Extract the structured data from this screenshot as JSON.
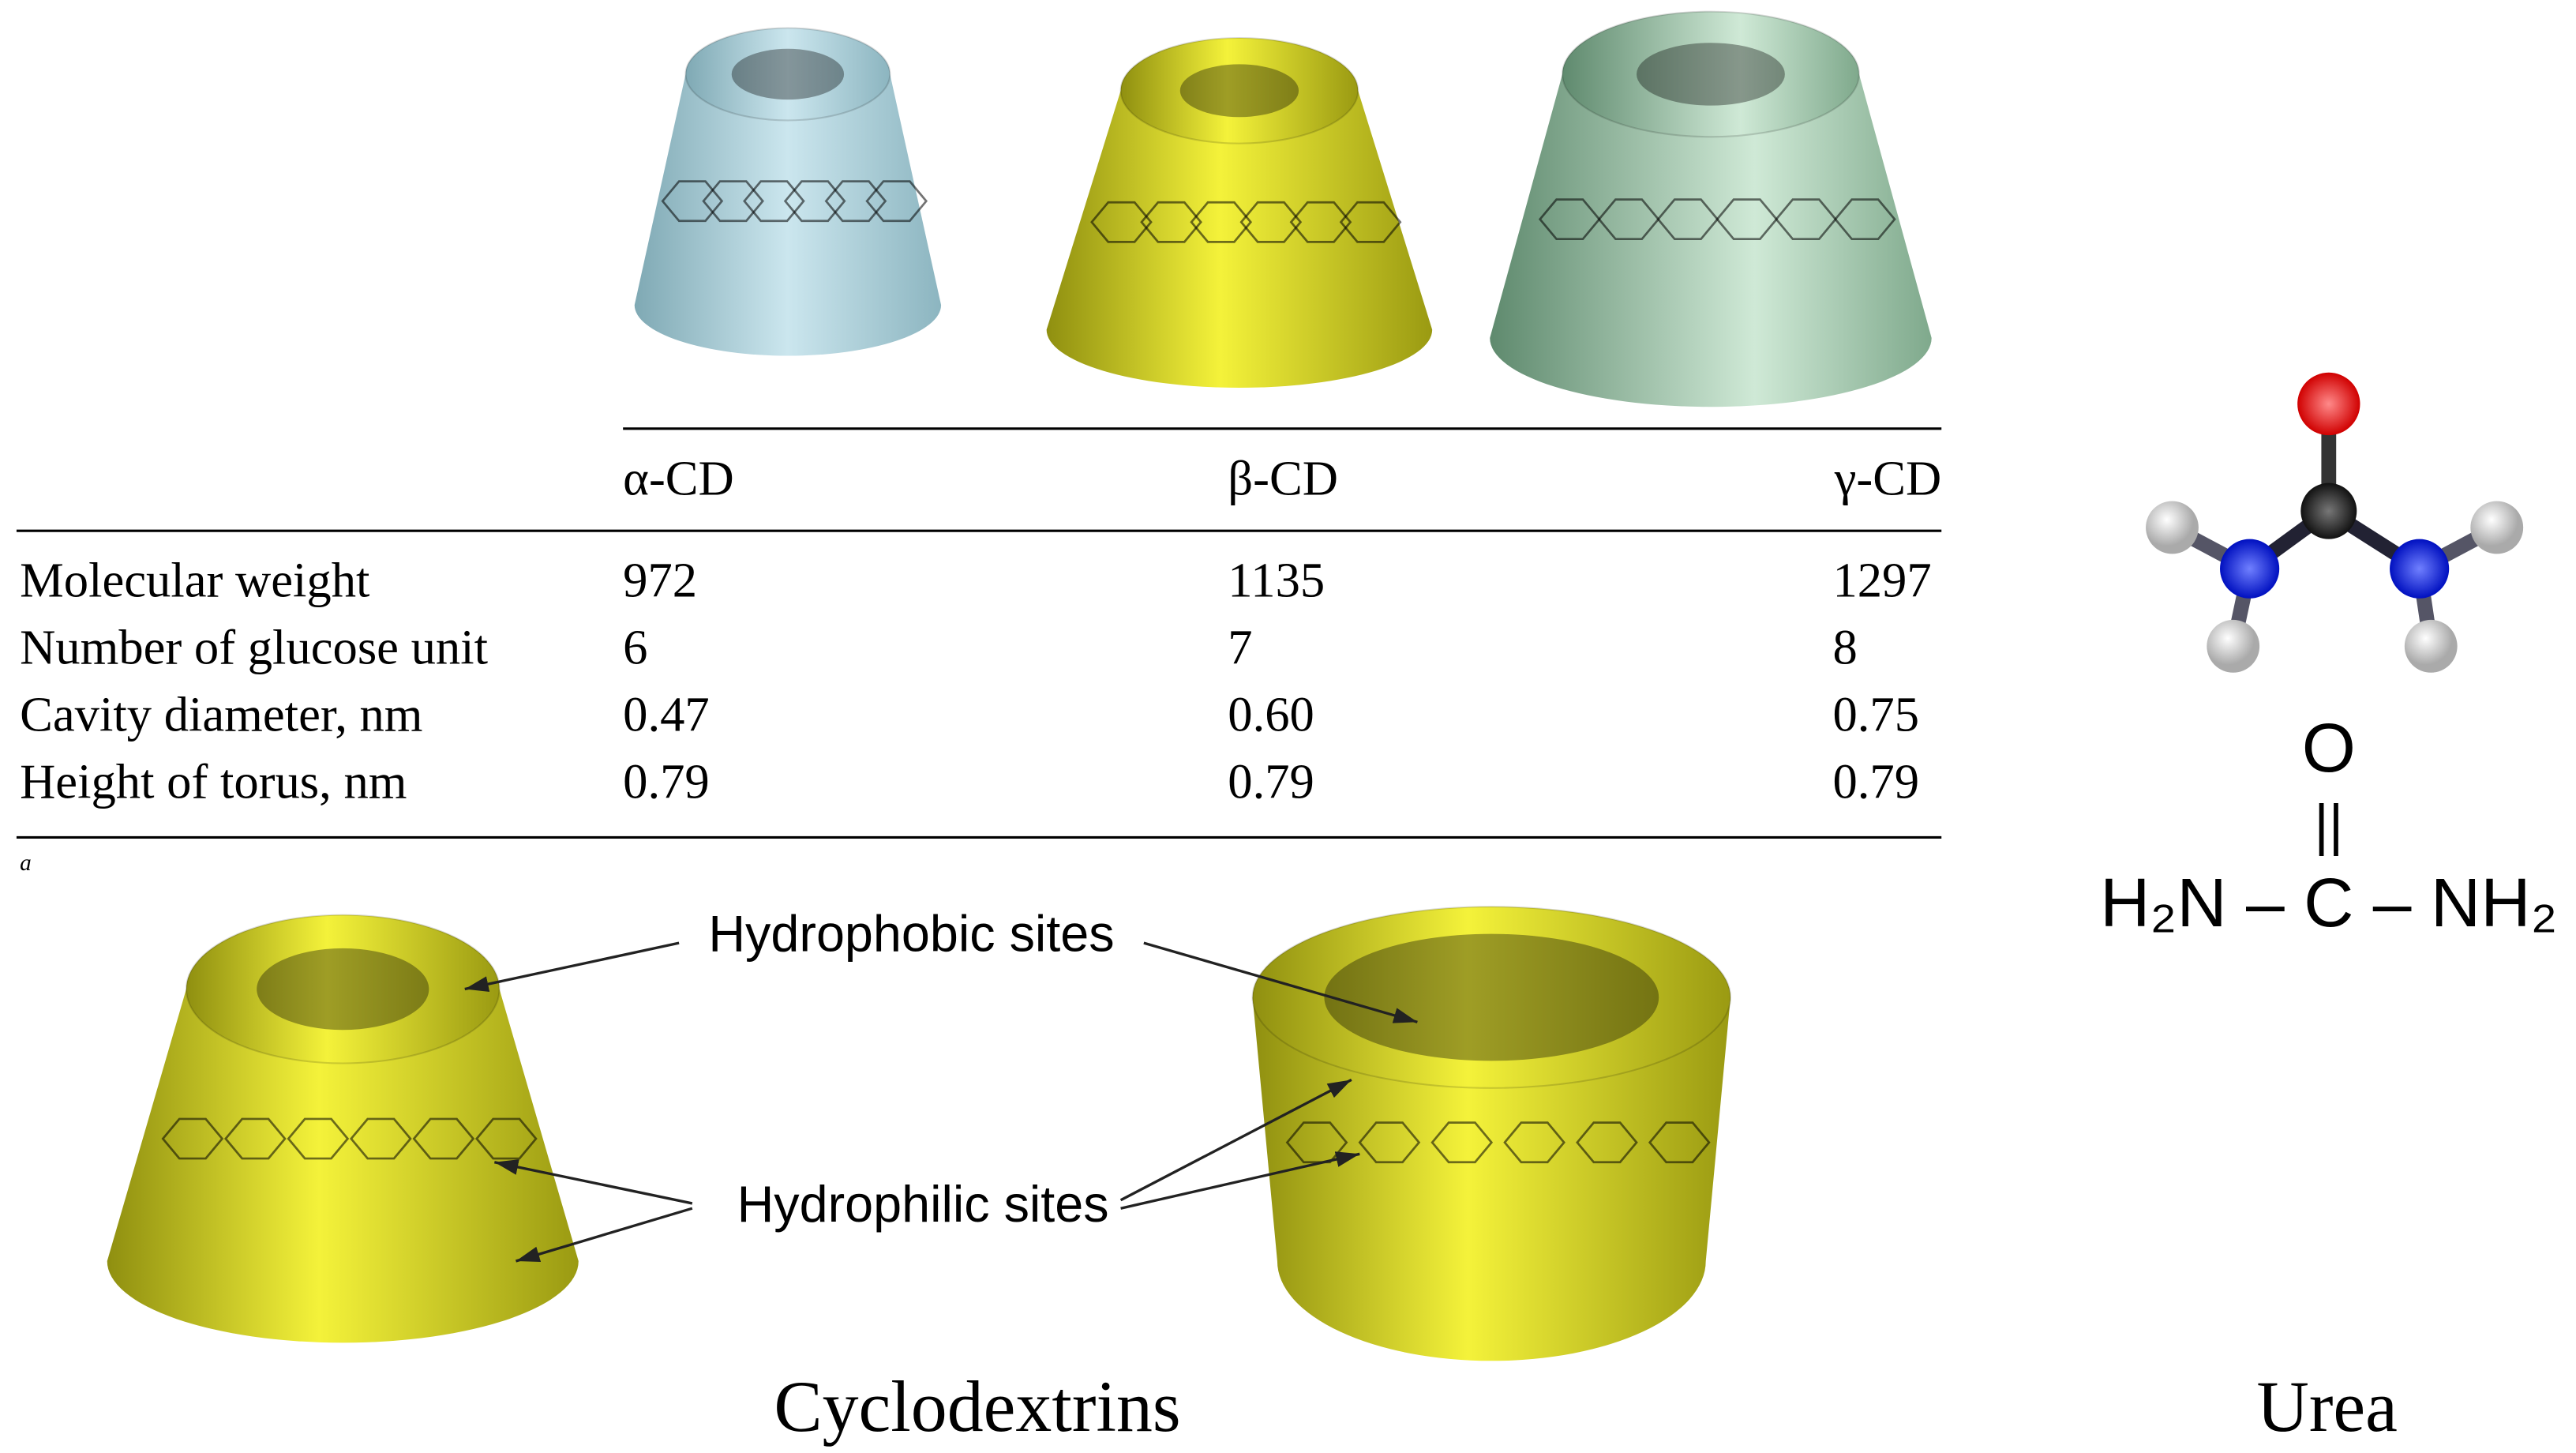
{
  "table": {
    "columns": [
      "α-CD",
      "β-CD",
      "γ-CD"
    ],
    "rows": [
      [
        "Molecular weight",
        "972",
        "1135",
        "1297"
      ],
      [
        "Number of glucose unit",
        "6",
        "7",
        "8"
      ],
      [
        "Cavity diameter, nm",
        "0.47",
        "0.60",
        "0.75"
      ],
      [
        "Height of torus, nm",
        "0.79",
        "0.79",
        "0.79"
      ]
    ],
    "footnote": "a"
  },
  "labels": {
    "hydrophobic": "Hydrophobic sites",
    "hydrophilic": "Hydrophilic sites"
  },
  "captions": {
    "left": "Cyclodextrins",
    "right": "Urea"
  },
  "formula": {
    "top": "O",
    "bond": "||",
    "row": "H₂N – C – NH₂"
  }
}
